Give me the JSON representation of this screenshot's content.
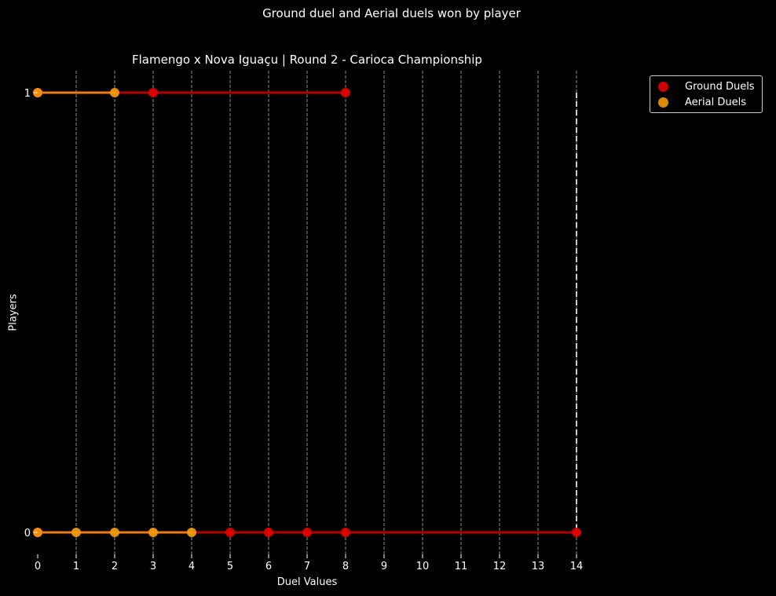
{
  "figure": {
    "suptitle": "Ground duel and Aerial duels won by player",
    "title": "Flamengo x Nova Iguaçu | Round 2 - Carioca Championship",
    "xlabel": "Duel Values",
    "ylabel": "Players"
  },
  "legend": {
    "placement": "upper-right-outside",
    "items": [
      {
        "label": "Ground Duels",
        "color": "#cc0000"
      },
      {
        "label": "Aerial Duels",
        "color": "#d98c00"
      }
    ]
  },
  "chart_data": {
    "type": "scatter",
    "title": "Flamengo x Nova Iguaçu | Round 2 - Carioca Championship",
    "xlabel": "Duel Values",
    "ylabel": "Players",
    "xlim": [
      0,
      14
    ],
    "x_ticks": [
      0,
      1,
      2,
      3,
      4,
      5,
      6,
      7,
      8,
      9,
      10,
      11,
      12,
      13,
      14
    ],
    "y_ticks": [
      0,
      1
    ],
    "grid": "vertical dashed",
    "series": [
      {
        "name": "Ground Duels",
        "color": "#e60000",
        "line_color": "#b30000",
        "points": [
          {
            "x": 0,
            "y": 1
          },
          {
            "x": 3,
            "y": 1
          },
          {
            "x": 8,
            "y": 1
          },
          {
            "x": 0,
            "y": 0
          },
          {
            "x": 5,
            "y": 0
          },
          {
            "x": 6,
            "y": 0
          },
          {
            "x": 7,
            "y": 0
          },
          {
            "x": 8,
            "y": 0
          },
          {
            "x": 14,
            "y": 0
          }
        ]
      },
      {
        "name": "Aerial Duels",
        "color": "#f59a10",
        "line_color": "#f07a10",
        "points": [
          {
            "x": 0,
            "y": 1
          },
          {
            "x": 2,
            "y": 1
          },
          {
            "x": 0,
            "y": 0
          },
          {
            "x": 1,
            "y": 0
          },
          {
            "x": 2,
            "y": 0
          },
          {
            "x": 3,
            "y": 0
          },
          {
            "x": 4,
            "y": 0
          }
        ]
      }
    ],
    "reference_line": {
      "x": 14,
      "style": "dashed",
      "color": "#ffffff"
    }
  }
}
